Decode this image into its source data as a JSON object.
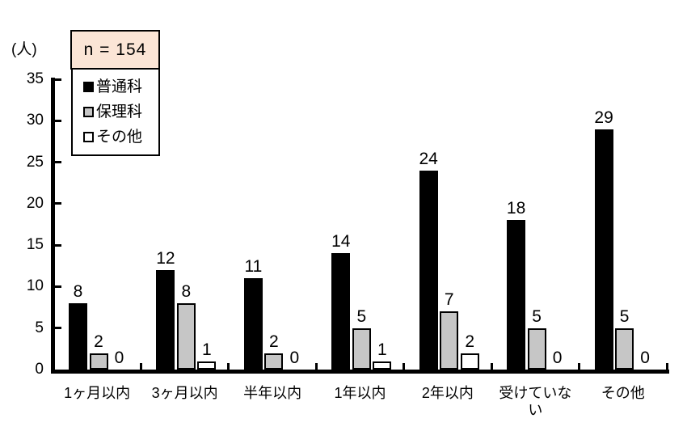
{
  "chart_data": {
    "type": "bar",
    "title": "",
    "unit_label": "(人)",
    "n_label": "n = 154",
    "categories": [
      "1ヶ月以内",
      "3ヶ月以内",
      "半年以内",
      "1年以内",
      "2年以内",
      "受けていない",
      "その他"
    ],
    "series": [
      {
        "name": "普通科",
        "color": "#000000",
        "values": [
          8,
          12,
          11,
          14,
          24,
          18,
          29
        ]
      },
      {
        "name": "保理科",
        "color": "#c6c6c6",
        "values": [
          2,
          8,
          2,
          5,
          7,
          5,
          5
        ]
      },
      {
        "name": "その他",
        "color": "#ffffff",
        "values": [
          0,
          1,
          0,
          1,
          2,
          0,
          0
        ]
      }
    ],
    "y_ticks": [
      0,
      5,
      10,
      15,
      20,
      25,
      30,
      35
    ],
    "ylim": [
      0,
      35
    ],
    "grid": false,
    "legend_position": "upper-left",
    "colors": {
      "n_box_bg": "#fbe5d6",
      "axis": "#000000",
      "background": "#ffffff"
    }
  }
}
